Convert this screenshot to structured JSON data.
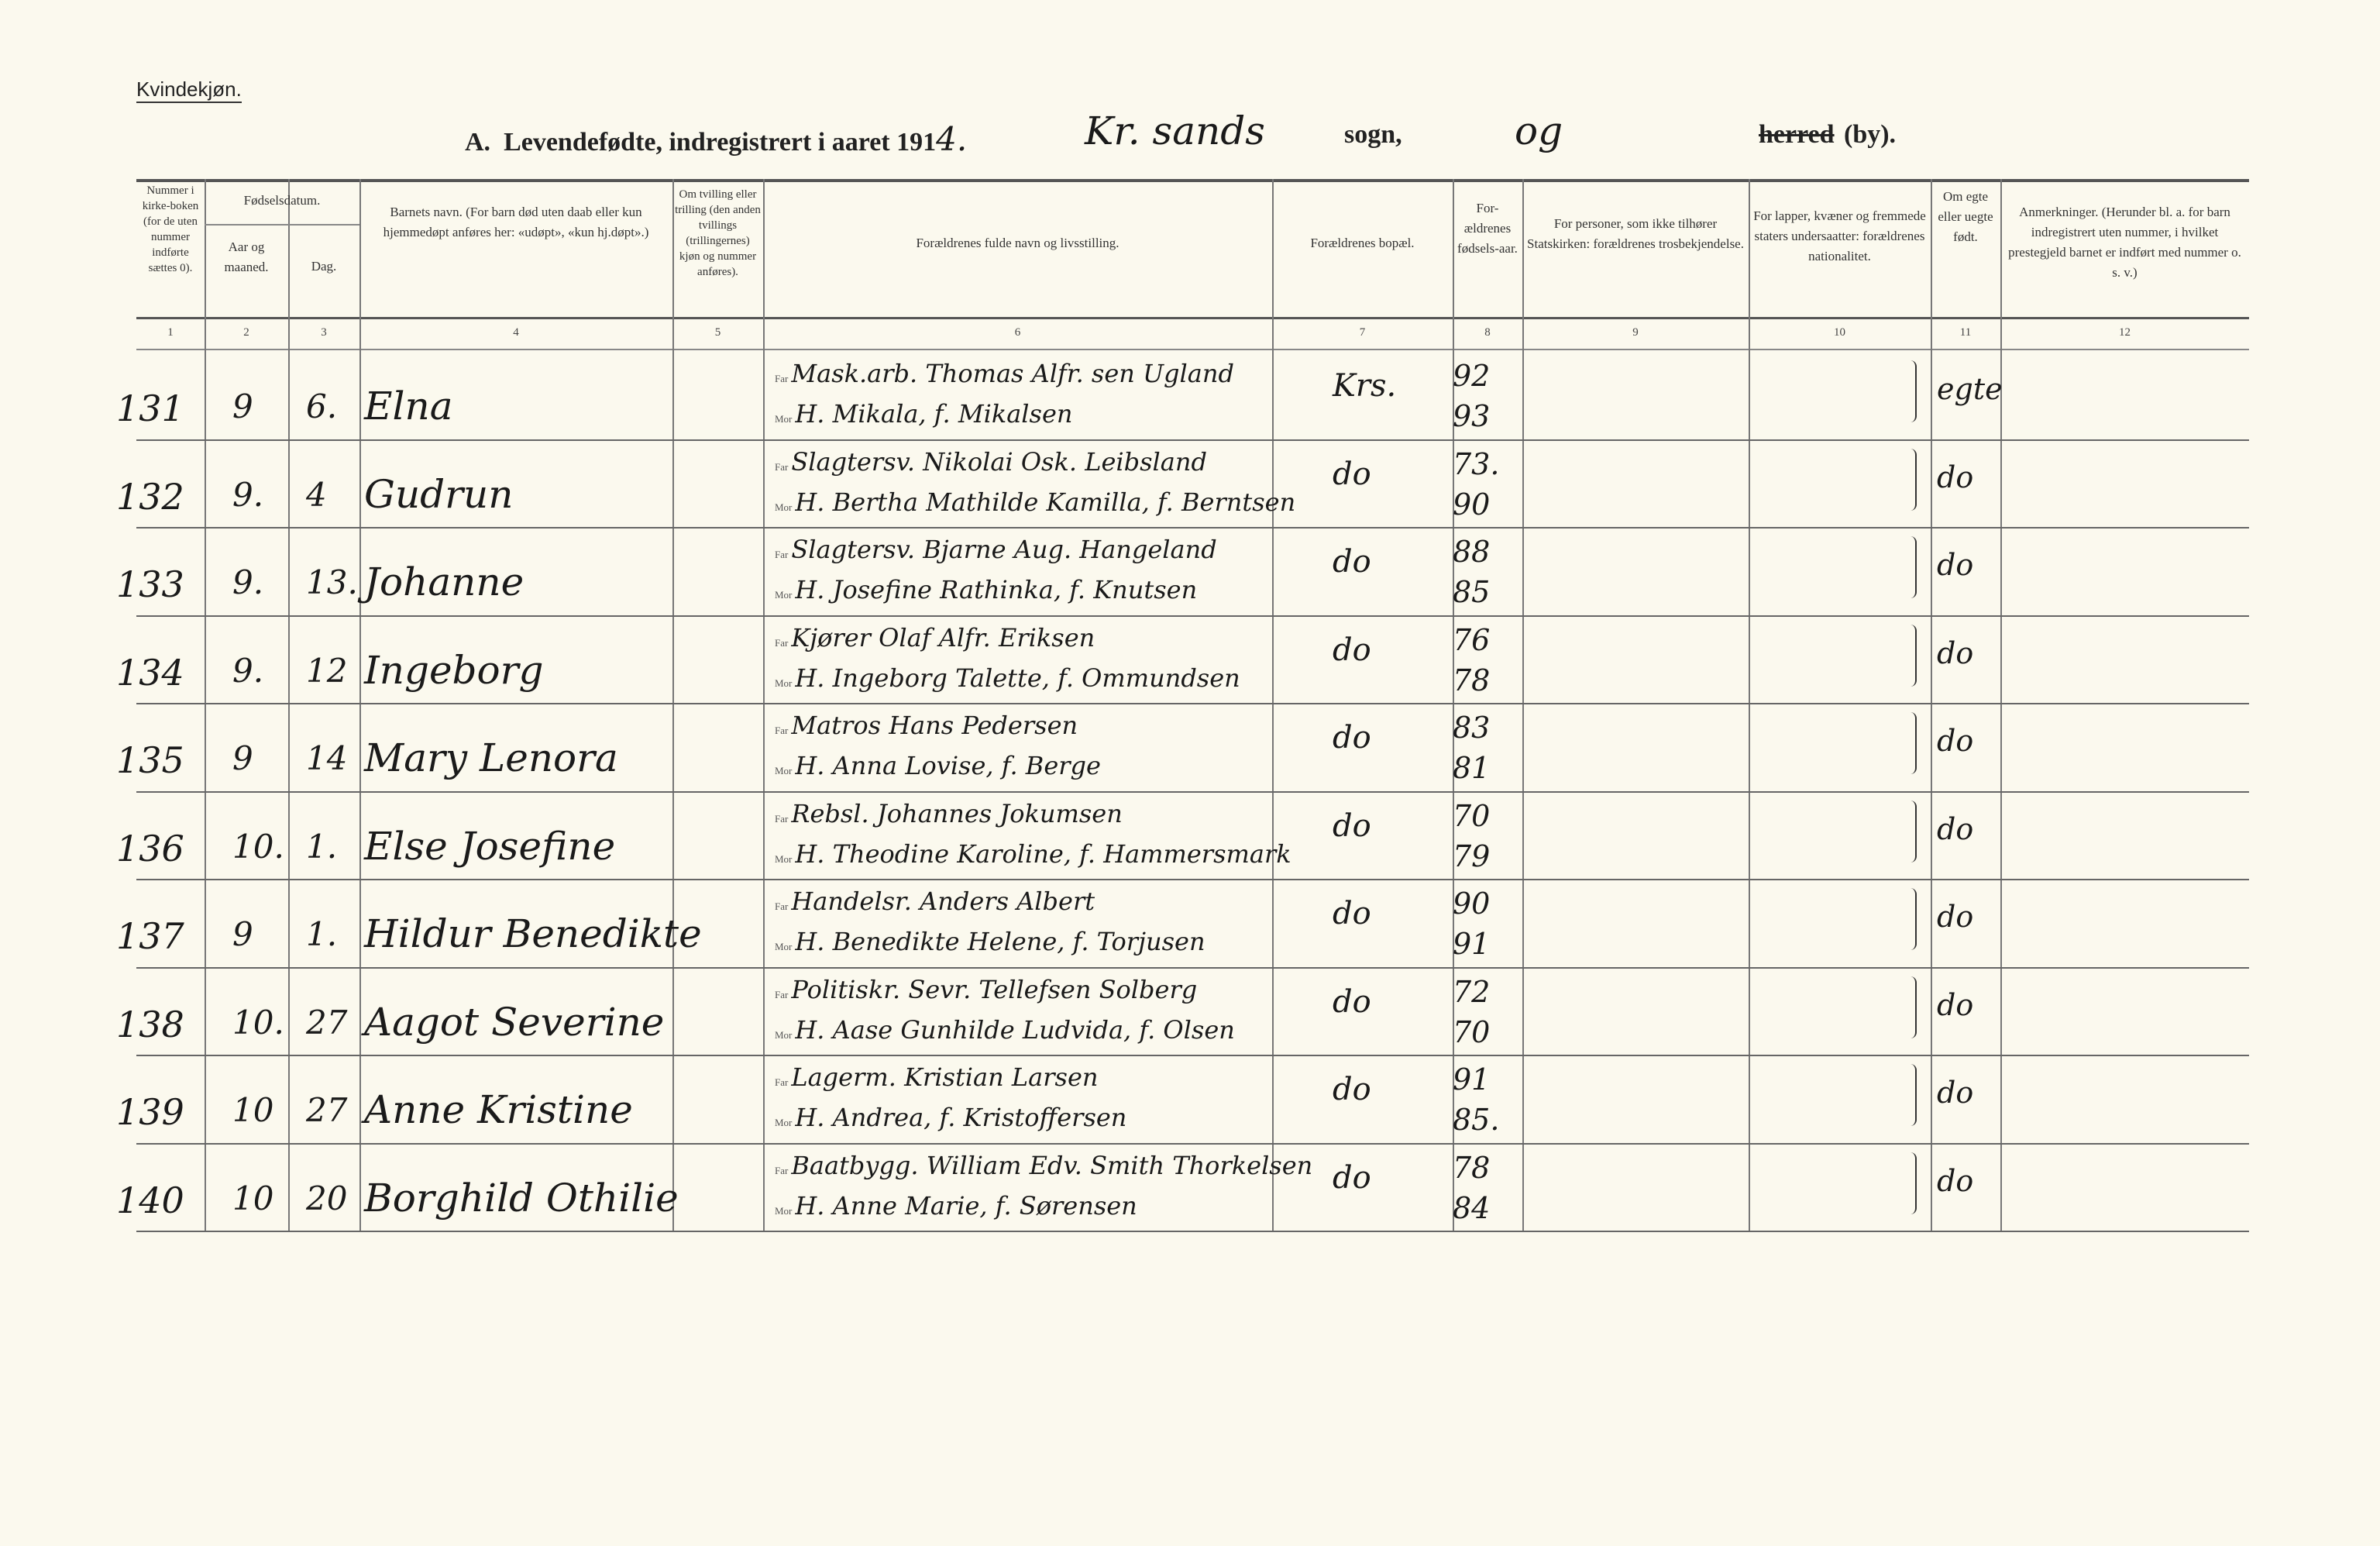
{
  "form_label": "Kvindekjøn.",
  "title": {
    "prefix": "A.",
    "text": "Levendefødte, indregistrert i aaret 191",
    "year_digit": "4.",
    "parish": "Kr. sands",
    "sogn": "sogn,",
    "og": "og",
    "herred": "herred",
    "by": "(by)."
  },
  "headers": [
    "Nummer i kirke-boken (for de uten nummer indførte sættes 0).",
    "Fødselsdatum.",
    "Aar og maaned.",
    "Dag.",
    "Barnets navn. (For barn død uten daab eller kun hjemmedøpt anføres her: «udøpt», «kun hj.døpt».)",
    "Om tvilling eller trilling (den anden tvillings (trillingernes) kjøn og nummer anføres).",
    "Forældrenes fulde navn og livsstilling.",
    "Forældrenes bopæl.",
    "For-ældrenes fødsels-aar.",
    "For personer, som ikke tilhører Statskirken: forældrenes trosbekjendelse.",
    "For lapper, kvæner og fremmede staters undersaatter: forældrenes nationalitet.",
    "Om egte eller uegte født.",
    "Anmerkninger. (Herunder bl. a. for barn indregistrert uten nummer, i hvilket prestegjeld barnet er indført med nummer o. s. v.)"
  ],
  "col_numbers": [
    "1",
    "2",
    "3",
    "4",
    "5",
    "6",
    "7",
    "8",
    "9",
    "10",
    "11",
    "12"
  ],
  "parent_labels": {
    "father": "Far",
    "mother": "Mor"
  },
  "rows": [
    {
      "num": "131",
      "month": "9",
      "day": "6.",
      "name": "Elna",
      "father": "Mask.arb. Thomas Alfr. sen Ugland",
      "mother": "H. Mikala, f. Mikalsen",
      "residence": "Krs.",
      "father_year": "92",
      "mother_year": "93",
      "legit": "egte"
    },
    {
      "num": "132",
      "month": "9.",
      "day": "4",
      "name": "Gudrun",
      "father": "Slagtersv. Nikolai Osk. Leibsland",
      "mother": "H. Bertha Mathilde Kamilla, f. Berntsen",
      "residence": "do",
      "father_year": "73.",
      "mother_year": "90",
      "legit": "do"
    },
    {
      "num": "133",
      "month": "9.",
      "day": "13.",
      "name": "Johanne",
      "father": "Slagtersv. Bjarne Aug. Hangeland",
      "mother": "H. Josefine Rathinka, f. Knutsen",
      "residence": "do",
      "father_year": "88",
      "mother_year": "85",
      "legit": "do"
    },
    {
      "num": "134",
      "month": "9.",
      "day": "12",
      "name": "Ingeborg",
      "father": "Kjører Olaf Alfr. Eriksen",
      "mother": "H. Ingeborg Talette, f. Ommundsen",
      "residence": "do",
      "father_year": "76",
      "mother_year": "78",
      "legit": "do"
    },
    {
      "num": "135",
      "month": "9",
      "day": "14",
      "name": "Mary Lenora",
      "father": "Matros Hans Pedersen",
      "mother": "H. Anna Lovise, f. Berge",
      "residence": "do",
      "father_year": "83",
      "mother_year": "81",
      "legit": "do"
    },
    {
      "num": "136",
      "month": "10.",
      "day": "1.",
      "name": "Else Josefine",
      "father": "Rebsl. Johannes Jokumsen",
      "mother": "H. Theodine Karoline, f. Hammersmark",
      "residence": "do",
      "father_year": "70",
      "mother_year": "79",
      "legit": "do"
    },
    {
      "num": "137",
      "month": "9",
      "day": "1.",
      "name": "Hildur Benedikte",
      "father": "Handelsr. Anders Albert",
      "mother": "H. Benedikte Helene, f. Torjusen",
      "residence": "do",
      "father_year": "90",
      "mother_year": "91",
      "legit": "do"
    },
    {
      "num": "138",
      "month": "10.",
      "day": "27",
      "name": "Aagot Severine",
      "father": "Politiskr. Sevr. Tellefsen Solberg",
      "mother": "H. Aase Gunhilde Ludvida, f. Olsen",
      "residence": "do",
      "father_year": "72",
      "mother_year": "70",
      "legit": "do"
    },
    {
      "num": "139",
      "month": "10",
      "day": "27",
      "name": "Anne Kristine",
      "father": "Lagerm. Kristian Larsen",
      "mother": "H. Andrea, f. Kristoffersen",
      "residence": "do",
      "father_year": "91",
      "mother_year": "85.",
      "legit": "do"
    },
    {
      "num": "140",
      "month": "10",
      "day": "20",
      "name": "Borghild Othilie",
      "father": "Baatbygg. William Edv. Smith Thorkelsen",
      "mother": "H. Anne Marie, f. Sørensen",
      "residence": "do",
      "father_year": "78",
      "mother_year": "84",
      "legit": "do"
    }
  ]
}
